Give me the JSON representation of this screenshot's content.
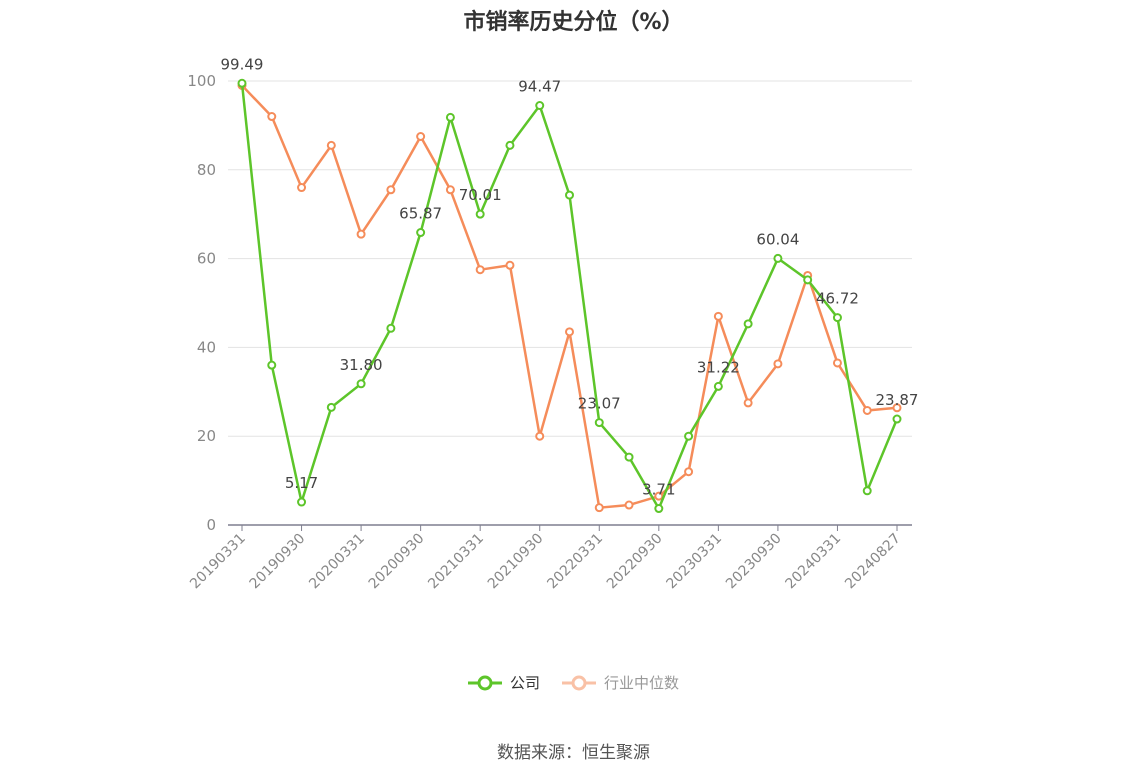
{
  "chart_data": {
    "type": "line",
    "title": "市销率历史分位（%）",
    "x": [
      "20190331",
      "20190630",
      "20190930",
      "20191231",
      "20200331",
      "20200630",
      "20200930",
      "20201231",
      "20210331",
      "20210630",
      "20210930",
      "20211231",
      "20220331",
      "20220630",
      "20220930",
      "20221231",
      "20230331",
      "20230630",
      "20230930",
      "20231231",
      "20240331",
      "20240630",
      "20240827"
    ],
    "x_tick_labels": [
      "20190331",
      "20190930",
      "20200331",
      "20200930",
      "20210331",
      "20210930",
      "20220331",
      "20220930",
      "20230331",
      "20230930",
      "20240331",
      "20240827"
    ],
    "ylim": [
      0,
      100
    ],
    "y_ticks": [
      0,
      20,
      40,
      60,
      80,
      100
    ],
    "grid": true,
    "legend_position": "bottom-center",
    "series": [
      {
        "name": "公司",
        "color": "#5dc52a",
        "values": [
          99.49,
          36.0,
          5.17,
          26.5,
          31.8,
          44.3,
          65.87,
          91.8,
          70.01,
          85.5,
          94.47,
          74.3,
          23.07,
          15.3,
          3.71,
          20.0,
          31.22,
          45.3,
          60.04,
          55.2,
          46.72,
          7.7,
          23.87
        ],
        "labels": {
          "0": "99.49",
          "2": "5.17",
          "4": "31.80",
          "6": "65.87",
          "8": "70.01",
          "10": "94.47",
          "12": "23.07",
          "14": "3.71",
          "16": "31.22",
          "18": "60.04",
          "20": "46.72",
          "22": "23.87"
        }
      },
      {
        "name": "行业中位数",
        "color": "#f58c5a",
        "values": [
          99.0,
          92.0,
          76.0,
          85.5,
          65.5,
          75.5,
          87.5,
          75.5,
          57.5,
          58.5,
          20.0,
          43.5,
          3.9,
          4.5,
          6.5,
          12.0,
          47.0,
          27.5,
          36.3,
          56.2,
          36.5,
          25.8,
          26.4
        ]
      }
    ]
  },
  "legend": {
    "company": "公司",
    "industry": "行业中位数"
  },
  "source": "数据来源：恒生聚源"
}
